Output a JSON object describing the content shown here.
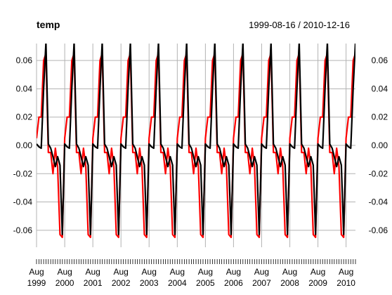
{
  "chart_data": {
    "type": "line",
    "title": "temp",
    "date_range": "1999-08-16 / 2010-12-16",
    "ylim": [
      -0.072,
      0.072
    ],
    "y_ticks": [
      "0.06",
      "0.04",
      "0.02",
      "0.00",
      "-0.02",
      "-0.04",
      "-0.06"
    ],
    "x_ticks": [
      {
        "month": "Aug",
        "year": "1999"
      },
      {
        "month": "Aug",
        "year": "2000"
      },
      {
        "month": "Aug",
        "year": "2001"
      },
      {
        "month": "Aug",
        "year": "2002"
      },
      {
        "month": "Aug",
        "year": "2003"
      },
      {
        "month": "Aug",
        "year": "2004"
      },
      {
        "month": "Aug",
        "year": "2005"
      },
      {
        "month": "Aug",
        "year": "2006"
      },
      {
        "month": "Aug",
        "year": "2007"
      },
      {
        "month": "Aug",
        "year": "2008"
      },
      {
        "month": "Aug",
        "year": "2009"
      },
      {
        "month": "Aug",
        "year": "2010"
      }
    ],
    "x_start": "1999-08-16",
    "x_end": "2010-12-16",
    "grid": true,
    "series": [
      {
        "color": "#ff0000",
        "yearly_pattern_from_aug": [
          0.005,
          0.02,
          0.02,
          0.06,
          0.065,
          -0.005,
          -0.005,
          -0.02,
          -0.002,
          -0.015,
          -0.063,
          -0.065
        ],
        "dec_2010": 0.065
      },
      {
        "color": "#000000",
        "yearly_pattern_from_aug": [
          0.001,
          -0.001,
          -0.002,
          0.04,
          0.073,
          0.001,
          -0.002,
          -0.008,
          -0.015,
          -0.008,
          -0.014,
          -0.063
        ],
        "dec_2010": 0.073
      }
    ]
  }
}
